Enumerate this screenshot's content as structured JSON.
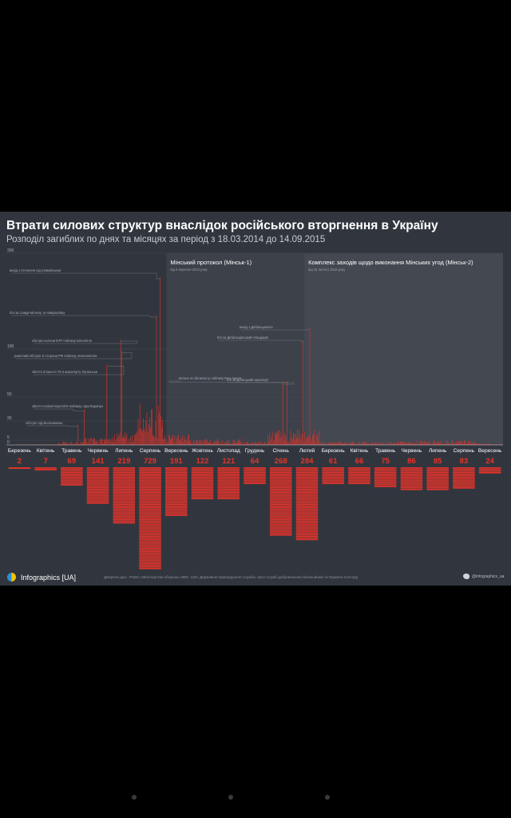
{
  "title": "Втрати силових структур внаслідок російського вторгнення в Україну",
  "subtitle": "Розподіл загиблих по днях та місяцях за період з 18.03.2014 до 14.09.2015",
  "colors": {
    "bar": "#e8332a",
    "background": "#31363e",
    "panel1": "#3c414a",
    "panel2": "#434851",
    "grid": "#444a53"
  },
  "chart_data": {
    "type": "bar",
    "title": "Втрати силових структур внаслідок російського вторгнення в Україну",
    "ylim": [
      0,
      200
    ],
    "yticks": [
      0,
      5,
      25,
      50,
      100,
      200
    ],
    "grid": true,
    "periods": [
      {
        "label": "Мінський протокол (Мінськ-1)",
        "sublabel": "від 5 вересня 2014 року"
      },
      {
        "label": "Комплекс заходів щодо виконання Мінських угод (Мінськ-2)",
        "sublabel": "від 12 лютого 2015 року"
      }
    ],
    "months": [
      "Березень",
      "Квітень",
      "Травень",
      "Червень",
      "Липень",
      "Серпень",
      "Вересень",
      "Жовтень",
      "Листопад",
      "Грудень",
      "Січень",
      "Лютий",
      "Березень",
      "Квітень",
      "Травень",
      "Червень",
      "Липень",
      "Серпень",
      "Вересень"
    ],
    "monthly_totals": [
      2,
      7,
      69,
      141,
      219,
      729,
      191,
      122,
      121,
      64,
      268,
      284,
      61,
      66,
      75,
      86,
      85,
      83,
      24
    ],
    "annotations": [
      {
        "text": "вихід з оточення під Іловайськом",
        "value": 175
      },
      {
        "text": "бої за Савур-Могилу та Амвросіївку",
        "value": 135
      },
      {
        "text": "обстріл колони БТР поблизу Білопілля",
        "value": 110
      },
      {
        "text": "ракетний обстріл зі сторони РФ поблизу Зеленопілля",
        "value": 98
      },
      {
        "text": "збиття літака Іл-76 в аеропорту Луганська",
        "value": 84
      },
      {
        "text": "збиття гелікоптера Мі-8 поблизу гори Карачун",
        "value": 37
      },
      {
        "text": "обстріл під Волновахою",
        "value": 21
      },
      {
        "text": "вихід з Дебальцевого",
        "value": 122
      },
      {
        "text": "бої за Дебальцівський плацдарм",
        "value": 109
      },
      {
        "text": "вогонь по блокпосту поблизу Юнь Бахти",
        "value": 67
      },
      {
        "text": "бої за Донецький аеропорт",
        "value": 65
      }
    ]
  },
  "footer": {
    "brand": "Infographics [UA]",
    "sources": "Джерела дан.: РНБО, Міністерства оборони, МВС, СБУ, Державної прикордонної служби, прес-служб добровольчих батальйонів та Правого Сектору",
    "twitter": "@infographics_ua"
  }
}
